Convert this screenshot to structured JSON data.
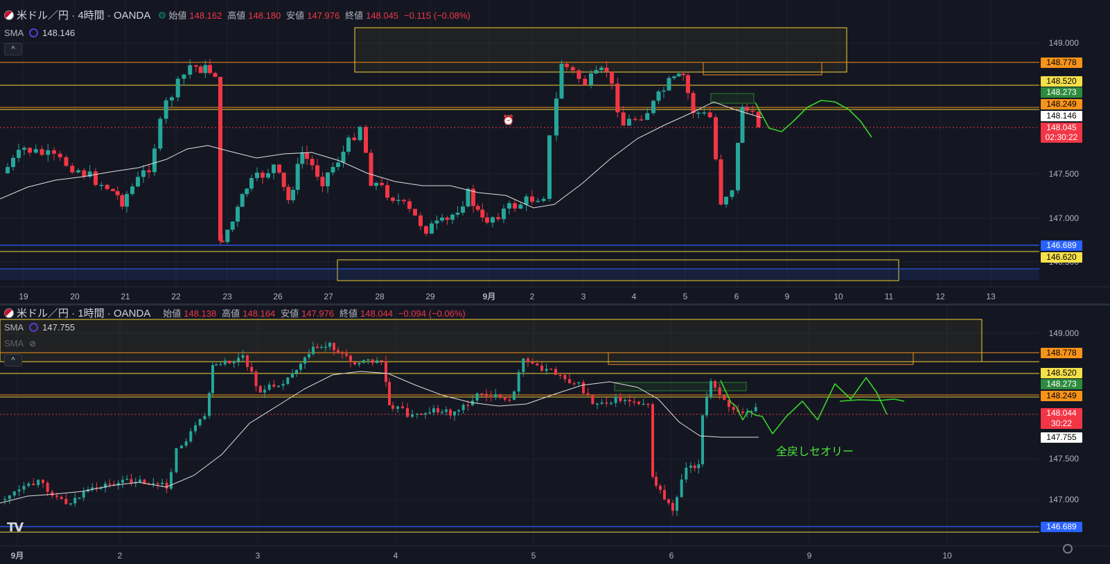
{
  "colors": {
    "up": "#26a69a",
    "down": "#f23645",
    "bg": "#141722",
    "grid": "#1e222d",
    "axis_text": "#b2b5be",
    "sma": "#e0e0e0",
    "yellow": "#f5d33b",
    "orange": "#f7931a",
    "blue": "#2962ff",
    "green_draw": "#39d42a",
    "price_red": "#f23645",
    "green_zone": "#2e7d32"
  },
  "pane1": {
    "symbol": "米ドル／円 · 4時間 · OANDA",
    "ohlc": {
      "o_label": "始値",
      "o": "148.162",
      "h_label": "高値",
      "h": "148.180",
      "l_label": "安値",
      "l": "147.976",
      "c_label": "終値",
      "c": "148.045",
      "chg": "−0.115 (−0.08%)"
    },
    "indicator": {
      "name": "SMA",
      "value": "148.146"
    },
    "collapse_icon": "chevron-up-icon",
    "y_ticks": [
      "149.000",
      "147.500",
      "147.000",
      "146.500"
    ],
    "price_tags": [
      {
        "text": "148.778",
        "bg": "#f7931a",
        "fg": "#000000"
      },
      {
        "text": "148.520",
        "bg": "#f5e04a",
        "fg": "#000000"
      },
      {
        "text": "148.273",
        "bg": "#2e8b3e",
        "fg": "#ffffff"
      },
      {
        "text": "148.249",
        "bg": "#f7931a",
        "fg": "#000000"
      },
      {
        "text": "148.146",
        "bg": "#ffffff",
        "fg": "#000000"
      },
      {
        "text": "148.045",
        "bg": "#f23645",
        "fg": "#ffffff"
      },
      {
        "text": "02:30:22",
        "bg": "#f23645",
        "fg": "#ffffff"
      },
      {
        "text": "146.689",
        "bg": "#2962ff",
        "fg": "#ffffff"
      },
      {
        "text": "146.620",
        "bg": "#f5e04a",
        "fg": "#000000"
      }
    ],
    "x_ticks": [
      "19",
      "20",
      "21",
      "22",
      "23",
      "26",
      "27",
      "28",
      "29",
      "9月",
      "2",
      "3",
      "4",
      "5",
      "6",
      "9",
      "10",
      "11",
      "12",
      "13"
    ],
    "alarm_icon": "alarm-clock-icon"
  },
  "pane2": {
    "symbol": "米ドル／円 · 1時間 · OANDA",
    "ohlc": {
      "o_label": "始値",
      "o": "148.138",
      "h_label": "高値",
      "h": "148.164",
      "l_label": "安値",
      "l": "147.976",
      "c_label": "終値",
      "c": "148.044",
      "chg": "−0.094 (−0.06%)"
    },
    "indicator": {
      "name": "SMA",
      "value": "147.755"
    },
    "indicator2": {
      "name": "SMA"
    },
    "collapse_icon": "chevron-up-icon",
    "y_ticks": [
      "149.000",
      "147.500",
      "147.000"
    ],
    "price_tags": [
      {
        "text": "148.778",
        "bg": "#f7931a",
        "fg": "#000000"
      },
      {
        "text": "148.520",
        "bg": "#f5e04a",
        "fg": "#000000"
      },
      {
        "text": "148.273",
        "bg": "#2e8b3e",
        "fg": "#ffffff"
      },
      {
        "text": "148.249",
        "bg": "#f7931a",
        "fg": "#000000"
      },
      {
        "text": "148.044",
        "bg": "#f23645",
        "fg": "#ffffff"
      },
      {
        "text": "30:22",
        "bg": "#f23645",
        "fg": "#ffffff"
      },
      {
        "text": "147.755",
        "bg": "#ffffff",
        "fg": "#000000"
      },
      {
        "text": "146.689",
        "bg": "#2962ff",
        "fg": "#ffffff"
      }
    ],
    "x_ticks": [
      "9月",
      "2",
      "3",
      "4",
      "5",
      "6",
      "9",
      "10"
    ],
    "annotation": "全戻しセオリー",
    "settings_icon": "gear-icon",
    "logo_text": "TV"
  }
}
